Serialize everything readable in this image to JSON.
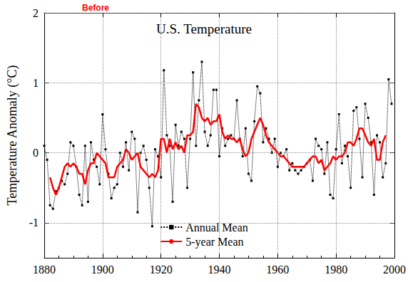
{
  "chart_data": {
    "type": "line",
    "title": "U.S. Temperature",
    "annotation": "Before",
    "y_label": "Temperature Anomaly (°C)",
    "xlim": [
      1880,
      2000
    ],
    "xticks": [
      1880,
      1900,
      1920,
      1940,
      1960,
      1980,
      2000
    ],
    "ylim": [
      -1.5,
      2
    ],
    "yticks": [
      -1,
      0,
      1,
      2
    ],
    "grid": true,
    "legend": "bottom",
    "x": [
      1880,
      1881,
      1882,
      1883,
      1884,
      1885,
      1886,
      1887,
      1888,
      1889,
      1890,
      1891,
      1892,
      1893,
      1894,
      1895,
      1896,
      1897,
      1898,
      1899,
      1900,
      1901,
      1902,
      1903,
      1904,
      1905,
      1906,
      1907,
      1908,
      1909,
      1910,
      1911,
      1912,
      1913,
      1914,
      1915,
      1916,
      1917,
      1918,
      1919,
      1920,
      1921,
      1922,
      1923,
      1924,
      1925,
      1926,
      1927,
      1928,
      1929,
      1930,
      1931,
      1932,
      1933,
      1934,
      1935,
      1936,
      1937,
      1938,
      1939,
      1940,
      1941,
      1942,
      1943,
      1944,
      1945,
      1946,
      1947,
      1948,
      1949,
      1950,
      1951,
      1952,
      1953,
      1954,
      1955,
      1956,
      1957,
      1958,
      1959,
      1960,
      1961,
      1962,
      1963,
      1964,
      1965,
      1966,
      1967,
      1968,
      1969,
      1970,
      1971,
      1972,
      1973,
      1974,
      1975,
      1976,
      1977,
      1978,
      1979,
      1980,
      1981,
      1982,
      1983,
      1984,
      1985,
      1986,
      1987,
      1988,
      1989,
      1990,
      1991,
      1992,
      1993,
      1994,
      1995,
      1996,
      1997,
      1998,
      1999
    ],
    "series": [
      {
        "name": "Annual Mean",
        "color": "#000000",
        "marker": "square",
        "line_style": "dotted",
        "values": [
          0.1,
          -0.1,
          -0.75,
          -0.8,
          -0.55,
          -0.5,
          -0.4,
          -0.45,
          -0.3,
          0.15,
          0.1,
          -0.2,
          -0.6,
          -0.75,
          0.1,
          -0.7,
          0.15,
          -0.1,
          -0.2,
          -0.45,
          0.55,
          0.05,
          -0.3,
          -0.65,
          -0.5,
          -0.45,
          0.0,
          -0.2,
          0.15,
          -0.25,
          0.3,
          0.2,
          -0.85,
          0.0,
          0.1,
          -0.1,
          -0.5,
          -1.05,
          0.05,
          -0.05,
          -0.35,
          1.18,
          0.25,
          0.1,
          -0.7,
          0.4,
          0.1,
          0.3,
          0.2,
          -0.5,
          0.2,
          1.15,
          0.1,
          0.75,
          1.3,
          0.3,
          0.1,
          0.25,
          0.9,
          0.9,
          -0.05,
          0.35,
          0.1,
          0.2,
          0.25,
          0.2,
          0.75,
          0.2,
          -0.05,
          0.35,
          -0.3,
          -0.4,
          0.45,
          0.95,
          0.85,
          0.15,
          0.35,
          0.2,
          0.0,
          0.2,
          -0.2,
          0.0,
          -0.05,
          0.05,
          -0.25,
          -0.15,
          -0.25,
          -0.3,
          -0.25,
          -0.2,
          -0.15,
          -0.1,
          -0.4,
          0.2,
          0.1,
          0.05,
          -0.3,
          0.15,
          -0.6,
          -0.65,
          0.05,
          0.55,
          -0.15,
          0.1,
          -0.05,
          -0.5,
          0.6,
          0.65,
          0.2,
          -0.35,
          0.7,
          0.5,
          0.15,
          -0.6,
          0.25,
          0.15,
          -0.35,
          -0.15,
          1.05,
          0.7
        ]
      },
      {
        "name": "5-year Mean",
        "color": "#ff0000",
        "marker": "none",
        "line_style": "solid",
        "values": [
          null,
          null,
          -0.35,
          -0.5,
          -0.6,
          -0.5,
          -0.35,
          -0.2,
          -0.15,
          -0.2,
          -0.15,
          -0.2,
          -0.3,
          -0.3,
          -0.45,
          -0.25,
          -0.15,
          -0.15,
          0.0,
          -0.05,
          -0.1,
          -0.15,
          -0.35,
          -0.35,
          -0.35,
          -0.2,
          -0.15,
          -0.1,
          0.05,
          0.0,
          -0.1,
          -0.05,
          0.0,
          -0.2,
          -0.25,
          -0.3,
          -0.35,
          -0.3,
          -0.35,
          -0.25,
          0.2,
          0.2,
          0.0,
          0.2,
          0.05,
          0.15,
          0.05,
          0.1,
          0.0,
          0.25,
          0.25,
          0.3,
          0.7,
          0.65,
          0.5,
          0.45,
          0.5,
          0.4,
          0.45,
          0.45,
          0.55,
          0.3,
          0.2,
          0.25,
          0.2,
          0.2,
          0.15,
          0.2,
          0.05,
          -0.05,
          0.0,
          0.2,
          0.3,
          0.4,
          0.5,
          0.4,
          0.25,
          0.15,
          0.1,
          0.05,
          0.0,
          -0.05,
          -0.05,
          -0.1,
          -0.15,
          -0.2,
          -0.2,
          -0.2,
          -0.2,
          -0.2,
          -0.15,
          -0.1,
          -0.05,
          -0.05,
          -0.15,
          -0.1,
          -0.25,
          -0.2,
          -0.15,
          -0.05,
          -0.1,
          -0.05,
          -0.05,
          0.0,
          0.15,
          0.15,
          0.1,
          0.2,
          0.35,
          0.35,
          0.25,
          0.15,
          0.1,
          0.2,
          -0.1,
          -0.1,
          0.15,
          0.25,
          null,
          null
        ]
      }
    ]
  }
}
